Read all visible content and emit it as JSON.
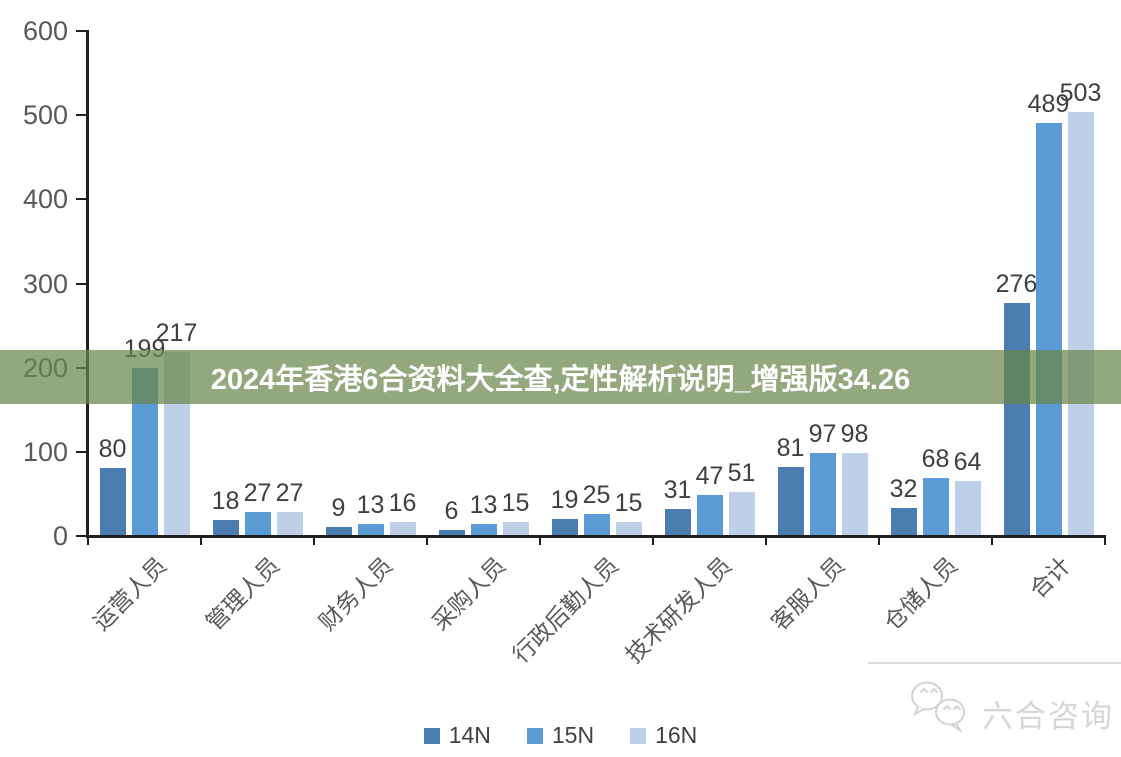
{
  "banner": {
    "text": "2024年香港6合资料大全查,定性解析说明_增强版34.26",
    "bg_rgba": "rgba(106,135,73,0.72)",
    "text_color": "#ffffff"
  },
  "chart_data": {
    "type": "bar",
    "title": "",
    "categories": [
      "运营人员",
      "管理人员",
      "财务人员",
      "采购人员",
      "行政后勤人员",
      "技术研发人员",
      "客服人员",
      "仓储人员",
      "合计"
    ],
    "series": [
      {
        "name": "14N",
        "color": "#4b7db0",
        "values": [
          80,
          18,
          9,
          6,
          19,
          31,
          81,
          32,
          276
        ]
      },
      {
        "name": "15N",
        "color": "#5b9bd5",
        "values": [
          199,
          27,
          13,
          13,
          25,
          47,
          97,
          68,
          489
        ]
      },
      {
        "name": "16N",
        "color": "#bdd0e8",
        "values": [
          217,
          27,
          16,
          15,
          15,
          51,
          98,
          64,
          503
        ]
      }
    ],
    "ylim": [
      0,
      600
    ],
    "yticks": [
      0,
      100,
      200,
      300,
      400,
      500,
      600
    ],
    "grid": false,
    "legend_position": "bottom",
    "value_labels": true,
    "axis_color": "#1f1f1f",
    "tick_label_color": "#595959",
    "value_label_color": "#3f3f3f"
  },
  "watermark": {
    "text": "六合咨询",
    "icon": "wechat-chat-bubbles-icon",
    "color": "#d6d6d6"
  }
}
